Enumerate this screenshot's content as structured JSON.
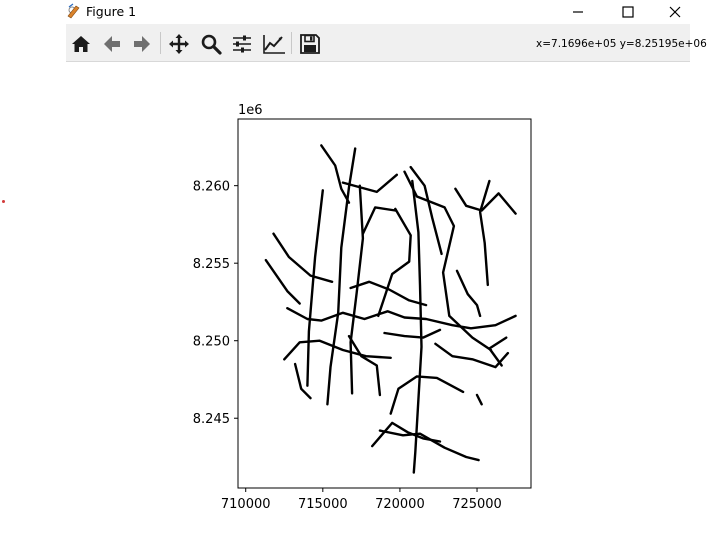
{
  "window": {
    "title": "Figure 1",
    "controls": [
      "minimize",
      "maximize",
      "close"
    ]
  },
  "toolbar": {
    "buttons": [
      {
        "name": "home",
        "icon": "home-icon"
      },
      {
        "name": "back",
        "icon": "arrow-left-icon"
      },
      {
        "name": "forward",
        "icon": "arrow-right-icon"
      },
      {
        "name": "pan",
        "icon": "move-icon"
      },
      {
        "name": "zoom",
        "icon": "magnifier-icon"
      },
      {
        "name": "configure-subplots",
        "icon": "sliders-icon"
      },
      {
        "name": "edit-axis",
        "icon": "line-chart-icon"
      },
      {
        "name": "save",
        "icon": "floppy-disk-icon"
      }
    ],
    "coordinates": "x=7.1696e+05 y=8.25195e+06"
  },
  "plot": {
    "offset_text": "1e6",
    "xticks": [
      "710000",
      "715000",
      "720000",
      "725000"
    ],
    "yticks": [
      "8.245",
      "8.250",
      "8.255",
      "8.260"
    ],
    "xlim": [
      709500,
      728500
    ],
    "ylim": [
      8.2405,
      8.2643
    ],
    "line_color": "#000000"
  },
  "chart_data": {
    "type": "line",
    "title": "",
    "xlabel": "",
    "ylabel": "",
    "xlim": [
      709500,
      728500
    ],
    "ylim": [
      8240500,
      8264300
    ],
    "offset_text": "1e6",
    "xticks": [
      710000,
      715000,
      720000,
      725000
    ],
    "yticks": [
      8245000,
      8250000,
      8255000,
      8260000
    ],
    "grid": false,
    "series": [
      {
        "values": [
          [
            714900,
            8262600
          ],
          [
            715800,
            8261300
          ],
          [
            716200,
            8259800
          ],
          [
            716700,
            8258900
          ]
        ]
      },
      {
        "values": [
          [
            716300,
            8260200
          ],
          [
            718500,
            8259600
          ],
          [
            719800,
            8260700
          ]
        ]
      },
      {
        "values": [
          [
            717100,
            8262400
          ],
          [
            716700,
            8259900
          ],
          [
            716200,
            8256000
          ],
          [
            716000,
            8251800
          ],
          [
            715500,
            8248300
          ],
          [
            715300,
            8245900
          ]
        ]
      },
      {
        "values": [
          [
            717400,
            8260000
          ],
          [
            717600,
            8256600
          ],
          [
            717200,
            8253100
          ],
          [
            716800,
            8249900
          ],
          [
            716900,
            8246600
          ]
        ]
      },
      {
        "values": [
          [
            715000,
            8259700
          ],
          [
            714500,
            8255400
          ],
          [
            714100,
            8250600
          ],
          [
            714000,
            8247100
          ]
        ]
      },
      {
        "values": [
          [
            720300,
            8260900
          ],
          [
            721100,
            8259300
          ],
          [
            722900,
            8258600
          ],
          [
            723500,
            8257400
          ],
          [
            722800,
            8254400
          ],
          [
            723200,
            8251600
          ],
          [
            724700,
            8250200
          ],
          [
            725900,
            8249400
          ]
        ]
      },
      {
        "values": [
          [
            720700,
            8261200
          ],
          [
            721600,
            8260000
          ],
          [
            722100,
            8257900
          ],
          [
            722700,
            8255600
          ]
        ]
      },
      {
        "values": [
          [
            720800,
            8260300
          ],
          [
            721200,
            8257000
          ],
          [
            721300,
            8253600
          ],
          [
            721400,
            8249600
          ],
          [
            721200,
            8246200
          ],
          [
            721000,
            8242800
          ],
          [
            720900,
            8241500
          ]
        ]
      },
      {
        "values": [
          [
            719700,
            8258500
          ],
          [
            720700,
            8256800
          ],
          [
            720600,
            8255100
          ],
          [
            719500,
            8254300
          ],
          [
            718600,
            8251600
          ]
        ]
      },
      {
        "values": [
          [
            717600,
            8256900
          ],
          [
            718400,
            8258600
          ],
          [
            719700,
            8258400
          ]
        ]
      },
      {
        "values": [
          [
            723600,
            8259800
          ],
          [
            724300,
            8258700
          ],
          [
            725300,
            8258400
          ],
          [
            726400,
            8259500
          ],
          [
            727500,
            8258200
          ]
        ]
      },
      {
        "values": [
          [
            725800,
            8260300
          ],
          [
            725200,
            8258300
          ],
          [
            725500,
            8256300
          ],
          [
            725700,
            8253600
          ]
        ]
      },
      {
        "values": [
          [
            711800,
            8256900
          ],
          [
            712800,
            8255400
          ],
          [
            714200,
            8254200
          ],
          [
            715600,
            8253800
          ]
        ]
      },
      {
        "values": [
          [
            711300,
            8255200
          ],
          [
            712700,
            8253200
          ],
          [
            713500,
            8252400
          ]
        ]
      },
      {
        "values": [
          [
            712700,
            8252100
          ],
          [
            714000,
            8251400
          ],
          [
            714900,
            8251300
          ],
          [
            716300,
            8251800
          ],
          [
            717700,
            8251400
          ],
          [
            719200,
            8251900
          ],
          [
            720300,
            8251500
          ],
          [
            721700,
            8251400
          ],
          [
            723400,
            8251000
          ],
          [
            724600,
            8250800
          ],
          [
            726200,
            8251000
          ],
          [
            727500,
            8251600
          ]
        ]
      },
      {
        "values": [
          [
            712500,
            8248800
          ],
          [
            713500,
            8249900
          ],
          [
            714800,
            8250000
          ],
          [
            716300,
            8249400
          ],
          [
            717800,
            8249000
          ],
          [
            719400,
            8248900
          ]
        ]
      },
      {
        "values": [
          [
            719400,
            8245300
          ],
          [
            719900,
            8246900
          ],
          [
            721100,
            8247700
          ],
          [
            722400,
            8247600
          ],
          [
            723900,
            8246800
          ],
          [
            724100,
            8246700
          ]
        ]
      },
      {
        "values": [
          [
            718700,
            8244200
          ],
          [
            720200,
            8243900
          ],
          [
            721300,
            8244000
          ],
          [
            722900,
            8243100
          ],
          [
            724300,
            8242500
          ],
          [
            725100,
            8242300
          ]
        ]
      },
      {
        "values": [
          [
            718200,
            8243200
          ],
          [
            719500,
            8244700
          ],
          [
            720500,
            8244100
          ],
          [
            721500,
            8243700
          ],
          [
            722600,
            8243500
          ]
        ]
      },
      {
        "values": [
          [
            722300,
            8249800
          ],
          [
            723400,
            8249000
          ],
          [
            724700,
            8248800
          ],
          [
            726200,
            8248300
          ],
          [
            727000,
            8249200
          ]
        ]
      },
      {
        "values": [
          [
            723700,
            8254500
          ],
          [
            724400,
            8253000
          ],
          [
            725000,
            8252300
          ],
          [
            725200,
            8251600
          ]
        ]
      },
      {
        "values": [
          [
            716800,
            8253400
          ],
          [
            718000,
            8253800
          ],
          [
            719300,
            8253300
          ],
          [
            720600,
            8252600
          ],
          [
            721700,
            8252300
          ]
        ]
      },
      {
        "values": [
          [
            719000,
            8250500
          ],
          [
            720300,
            8250300
          ],
          [
            721500,
            8250200
          ],
          [
            722600,
            8250700
          ]
        ]
      },
      {
        "values": [
          [
            716700,
            8250300
          ],
          [
            717500,
            8249000
          ],
          [
            718500,
            8248400
          ],
          [
            718700,
            8246500
          ]
        ]
      },
      {
        "values": [
          [
            713200,
            8248500
          ],
          [
            713600,
            8246900
          ],
          [
            714200,
            8246300
          ]
        ]
      },
      {
        "values": [
          [
            726600,
            8248400
          ],
          [
            725800,
            8249500
          ],
          [
            726900,
            8250200
          ]
        ]
      },
      {
        "values": [
          [
            725000,
            8246500
          ],
          [
            725300,
            8245900
          ]
        ]
      }
    ]
  }
}
